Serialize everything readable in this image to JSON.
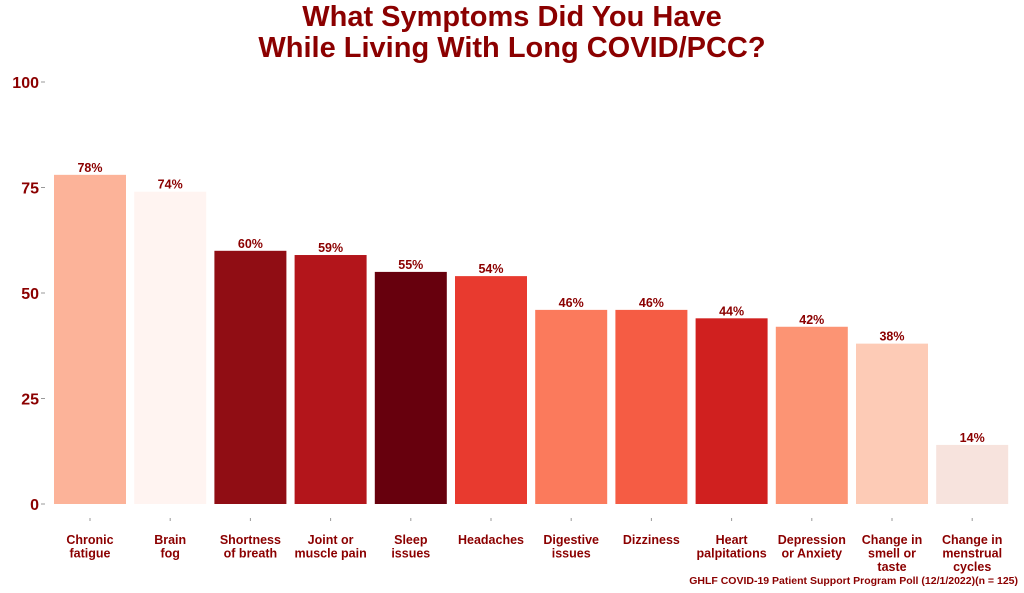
{
  "title_line1": "What Symptoms Did You Have",
  "title_line2": "While Living With Long COVID/PCC?",
  "caption": "GHLF COVID-19 Patient Support Program Poll (12/1/2022)(n = 125)",
  "colors": {
    "text": "#8b0000"
  },
  "chart_data": {
    "type": "bar",
    "title": "What Symptoms Did You Have While Living With Long COVID/PCC?",
    "categories": [
      [
        "Chronic",
        "fatigue"
      ],
      [
        "Brain",
        "fog"
      ],
      [
        "Shortness",
        "of breath"
      ],
      [
        "Joint or",
        "muscle pain"
      ],
      [
        "Sleep",
        "issues"
      ],
      [
        "Headaches"
      ],
      [
        "Digestive",
        "issues"
      ],
      [
        "Dizziness"
      ],
      [
        "Heart",
        "palpitations"
      ],
      [
        "Depression",
        "or Anxiety"
      ],
      [
        "Change in",
        "smell or",
        "taste"
      ],
      [
        "Change in",
        "menstrual",
        "cycles"
      ]
    ],
    "values": [
      78,
      74,
      60,
      59,
      55,
      54,
      46,
      46,
      44,
      42,
      38,
      14
    ],
    "value_labels": [
      "78%",
      "74%",
      "60%",
      "59%",
      "55%",
      "54%",
      "46%",
      "46%",
      "44%",
      "42%",
      "38%",
      "14%"
    ],
    "bar_colors": [
      "#fcb399",
      "#fff4f1",
      "#900d14",
      "#b3151b",
      "#67000d",
      "#e83a2f",
      "#fb7a5c",
      "#f55c44",
      "#d0201f",
      "#fc9474",
      "#fdcbb6",
      "#f7e3dd"
    ],
    "yticks": [
      0,
      25,
      50,
      75,
      100
    ],
    "ylim": [
      0,
      100
    ],
    "grid": false,
    "legend": "none"
  }
}
